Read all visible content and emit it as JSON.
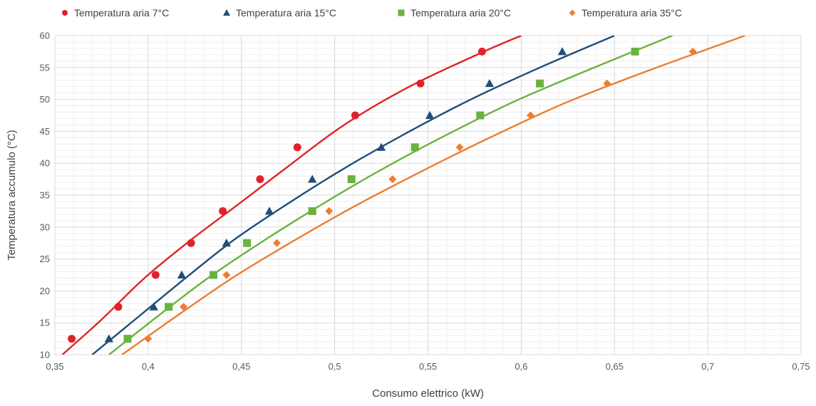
{
  "chart_data": {
    "type": "scatter",
    "title": "",
    "xlabel": "Consumo elettrico (kW)",
    "ylabel": "Temperatura accumulo (°C)",
    "xlim": [
      0.35,
      0.75
    ],
    "ylim": [
      10,
      60
    ],
    "x_ticks": [
      "0,35",
      "0,4",
      "0,45",
      "0,5",
      "0,55",
      "0,6",
      "0,65",
      "0,7",
      "0,75"
    ],
    "y_ticks": [
      "10",
      "15",
      "20",
      "25",
      "30",
      "35",
      "40",
      "45",
      "50",
      "55",
      "60"
    ],
    "grid": true,
    "legend_position": "top",
    "series": [
      {
        "name": "Temperatura aria 7°C",
        "color": "#e02228",
        "marker": "circle",
        "points": [
          [
            0.359,
            12.5
          ],
          [
            0.384,
            17.5
          ],
          [
            0.404,
            22.5
          ],
          [
            0.423,
            27.5
          ],
          [
            0.44,
            32.5
          ],
          [
            0.46,
            37.5
          ],
          [
            0.48,
            42.5
          ],
          [
            0.511,
            47.5
          ],
          [
            0.546,
            52.5
          ],
          [
            0.579,
            57.5
          ]
        ],
        "trend": [
          [
            0.354,
            10
          ],
          [
            0.375,
            15.5
          ],
          [
            0.398,
            22
          ],
          [
            0.423,
            28
          ],
          [
            0.448,
            33.5
          ],
          [
            0.475,
            39.5
          ],
          [
            0.505,
            46
          ],
          [
            0.54,
            52
          ],
          [
            0.58,
            57.5
          ],
          [
            0.6,
            60
          ]
        ]
      },
      {
        "name": "Temperatura aria 15°C",
        "color": "#1f4e79",
        "marker": "triangle",
        "points": [
          [
            0.379,
            12.5
          ],
          [
            0.403,
            17.5
          ],
          [
            0.418,
            22.5
          ],
          [
            0.442,
            27.5
          ],
          [
            0.465,
            32.5
          ],
          [
            0.488,
            37.5
          ],
          [
            0.525,
            42.5
          ],
          [
            0.551,
            47.5
          ],
          [
            0.583,
            52.5
          ],
          [
            0.622,
            57.5
          ]
        ],
        "trend": [
          [
            0.37,
            10
          ],
          [
            0.395,
            16
          ],
          [
            0.42,
            22
          ],
          [
            0.446,
            28
          ],
          [
            0.474,
            33.5
          ],
          [
            0.504,
            39
          ],
          [
            0.537,
            44.5
          ],
          [
            0.573,
            50
          ],
          [
            0.61,
            55
          ],
          [
            0.65,
            60
          ]
        ]
      },
      {
        "name": "Temperatura aria 20°C",
        "color": "#6ab23e",
        "marker": "square",
        "points": [
          [
            0.389,
            12.5
          ],
          [
            0.411,
            17.5
          ],
          [
            0.435,
            22.5
          ],
          [
            0.453,
            27.5
          ],
          [
            0.488,
            32.5
          ],
          [
            0.509,
            37.5
          ],
          [
            0.543,
            42.5
          ],
          [
            0.578,
            47.5
          ],
          [
            0.61,
            52.5
          ],
          [
            0.661,
            57.5
          ]
        ],
        "trend": [
          [
            0.379,
            10
          ],
          [
            0.405,
            16
          ],
          [
            0.432,
            22
          ],
          [
            0.46,
            27.5
          ],
          [
            0.49,
            33
          ],
          [
            0.522,
            38.5
          ],
          [
            0.557,
            44
          ],
          [
            0.595,
            49.5
          ],
          [
            0.635,
            54.5
          ],
          [
            0.681,
            60
          ]
        ]
      },
      {
        "name": "Temperatura aria 35°C",
        "color": "#ed7d31",
        "marker": "diamond",
        "points": [
          [
            0.4,
            12.5
          ],
          [
            0.419,
            17.5
          ],
          [
            0.442,
            22.5
          ],
          [
            0.469,
            27.5
          ],
          [
            0.497,
            32.5
          ],
          [
            0.531,
            37.5
          ],
          [
            0.567,
            42.5
          ],
          [
            0.605,
            47.5
          ],
          [
            0.646,
            52.5
          ],
          [
            0.692,
            57.5
          ]
        ],
        "trend": [
          [
            0.386,
            10
          ],
          [
            0.415,
            16
          ],
          [
            0.445,
            22
          ],
          [
            0.476,
            27.5
          ],
          [
            0.509,
            33
          ],
          [
            0.545,
            38.5
          ],
          [
            0.583,
            44
          ],
          [
            0.624,
            49.5
          ],
          [
            0.668,
            54.5
          ],
          [
            0.72,
            60
          ]
        ]
      }
    ]
  }
}
